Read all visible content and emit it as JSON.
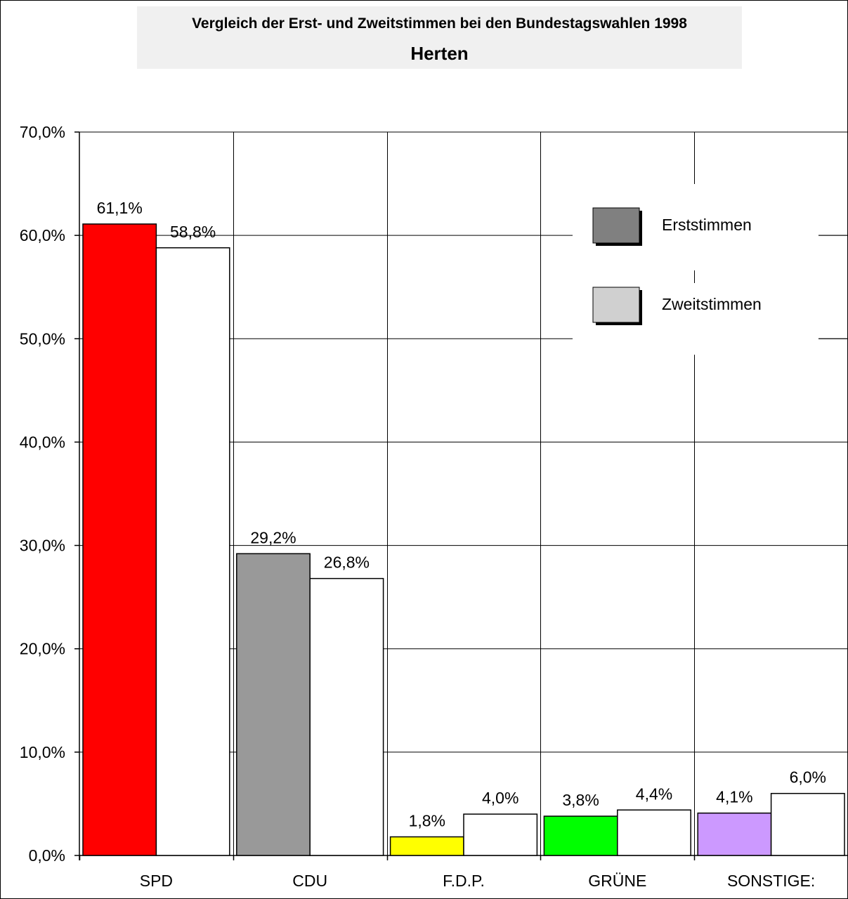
{
  "chart_data": {
    "type": "bar",
    "title": "Vergleich der Erst- und Zweitstimmen bei den Bundestagswahlen 1998",
    "subtitle": "Herten",
    "categories": [
      "SPD",
      "CDU",
      "F.D.P.",
      "GRÜNE",
      "SONSTIGE:"
    ],
    "series": [
      {
        "name": "Erststimmen",
        "values": [
          61.1,
          29.2,
          1.8,
          3.8,
          4.1
        ],
        "labels": [
          "61,1%",
          "29,2%",
          "1,8%",
          "3,8%",
          "4,1%"
        ],
        "colors": [
          "#ff0000",
          "#999999",
          "#ffff00",
          "#00ff00",
          "#cc99ff"
        ],
        "legend_color": "#808080"
      },
      {
        "name": "Zweitstimmen",
        "values": [
          58.8,
          26.8,
          4.0,
          4.4,
          6.0
        ],
        "labels": [
          "58,8%",
          "26,8%",
          "4,0%",
          "4,4%",
          "6,0%"
        ],
        "colors": [
          "#ffffff",
          "#ffffff",
          "#ffffff",
          "#ffffff",
          "#ffffff"
        ],
        "legend_color": "#d0d0d0"
      }
    ],
    "ylim": [
      0,
      70
    ],
    "yticks": [
      0,
      10,
      20,
      30,
      40,
      50,
      60,
      70
    ],
    "ytick_labels": [
      "0,0%",
      "10,0%",
      "20,0%",
      "30,0%",
      "40,0%",
      "50,0%",
      "60,0%",
      "70,0%"
    ],
    "grid": true,
    "legend": "top-right"
  }
}
